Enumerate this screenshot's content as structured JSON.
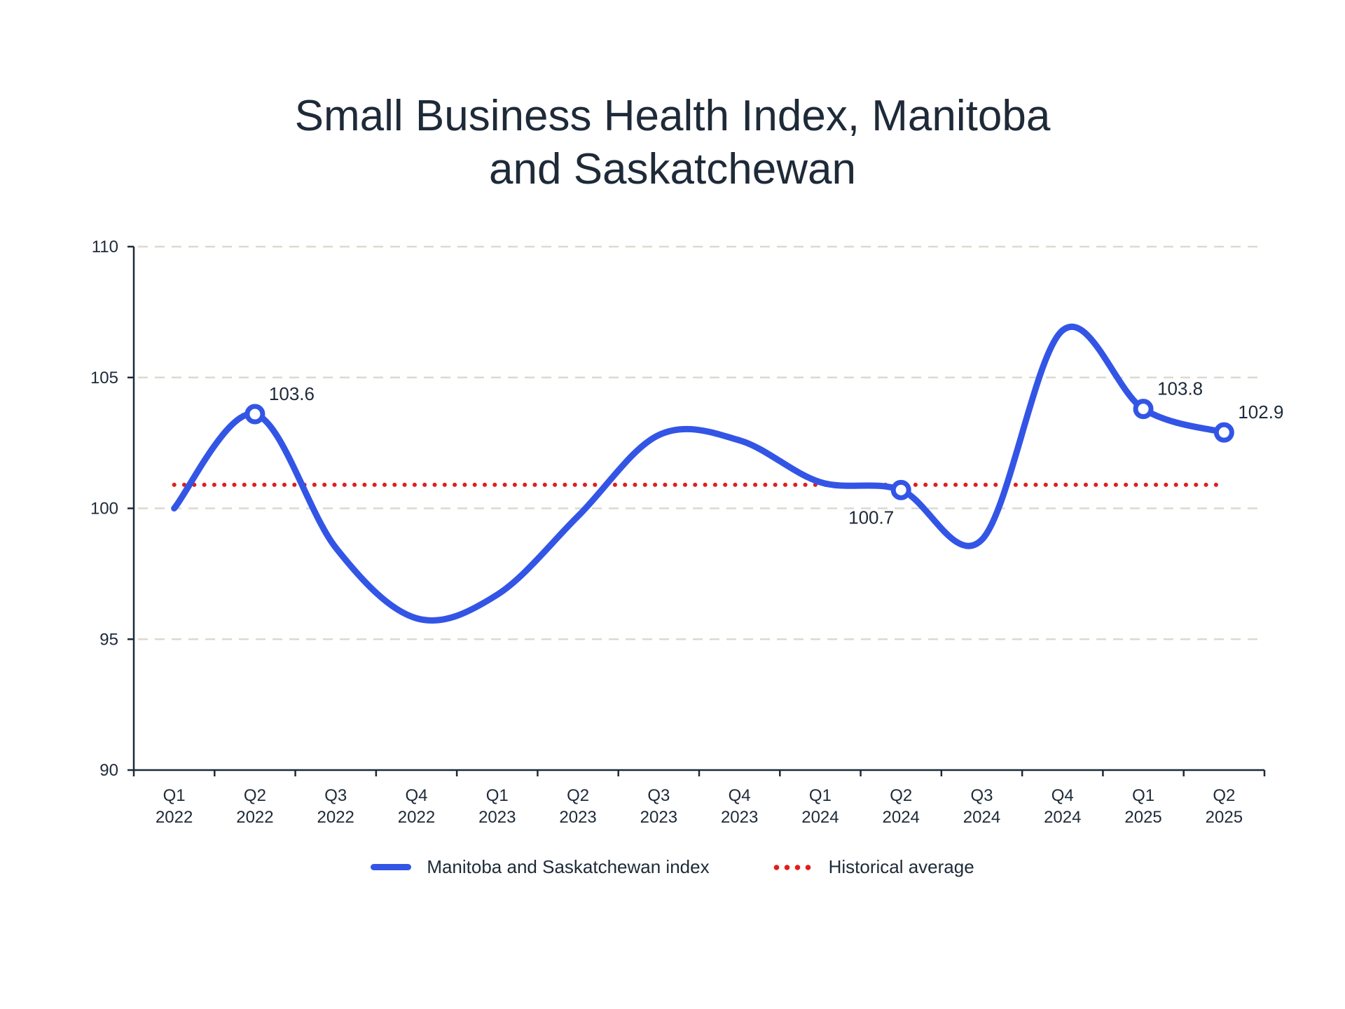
{
  "chart_data": {
    "type": "line",
    "title_lines": [
      "Small Business Health Index, Manitoba",
      "and Saskatchewan"
    ],
    "xlabel": "",
    "ylabel": "",
    "ylim": [
      90,
      110
    ],
    "yticks": [
      90,
      95,
      100,
      105,
      110
    ],
    "categories": [
      [
        "Q1",
        "2022"
      ],
      [
        "Q2",
        "2022"
      ],
      [
        "Q3",
        "2022"
      ],
      [
        "Q4",
        "2022"
      ],
      [
        "Q1",
        "2023"
      ],
      [
        "Q2",
        "2023"
      ],
      [
        "Q3",
        "2023"
      ],
      [
        "Q4",
        "2023"
      ],
      [
        "Q1",
        "2024"
      ],
      [
        "Q2",
        "2024"
      ],
      [
        "Q3",
        "2024"
      ],
      [
        "Q4",
        "2024"
      ],
      [
        "Q1",
        "2025"
      ],
      [
        "Q2",
        "2025"
      ]
    ],
    "series": [
      {
        "name": "Manitoba and Saskatchewan index",
        "color": "#3355e6",
        "smooth": true,
        "values": [
          100.0,
          103.6,
          98.5,
          95.8,
          96.7,
          99.7,
          102.8,
          102.6,
          101.0,
          100.7,
          98.8,
          106.8,
          103.8,
          102.9
        ]
      },
      {
        "name": "Historical average",
        "color": "#e01e1e",
        "style": "dotted",
        "values": [
          100.9,
          100.9,
          100.9,
          100.9,
          100.9,
          100.9,
          100.9,
          100.9,
          100.9,
          100.9,
          100.9,
          100.9,
          100.9,
          100.9
        ]
      }
    ],
    "highlighted_points": [
      {
        "index": 1,
        "label": "103.6",
        "label_position": "above-right"
      },
      {
        "index": 9,
        "label": "100.7",
        "label_position": "below-left"
      },
      {
        "index": 12,
        "label": "103.8",
        "label_position": "above-right"
      },
      {
        "index": 13,
        "label": "102.9",
        "label_position": "above-right"
      }
    ],
    "grid": "horizontal-dashed",
    "legend_position": "bottom-center"
  }
}
